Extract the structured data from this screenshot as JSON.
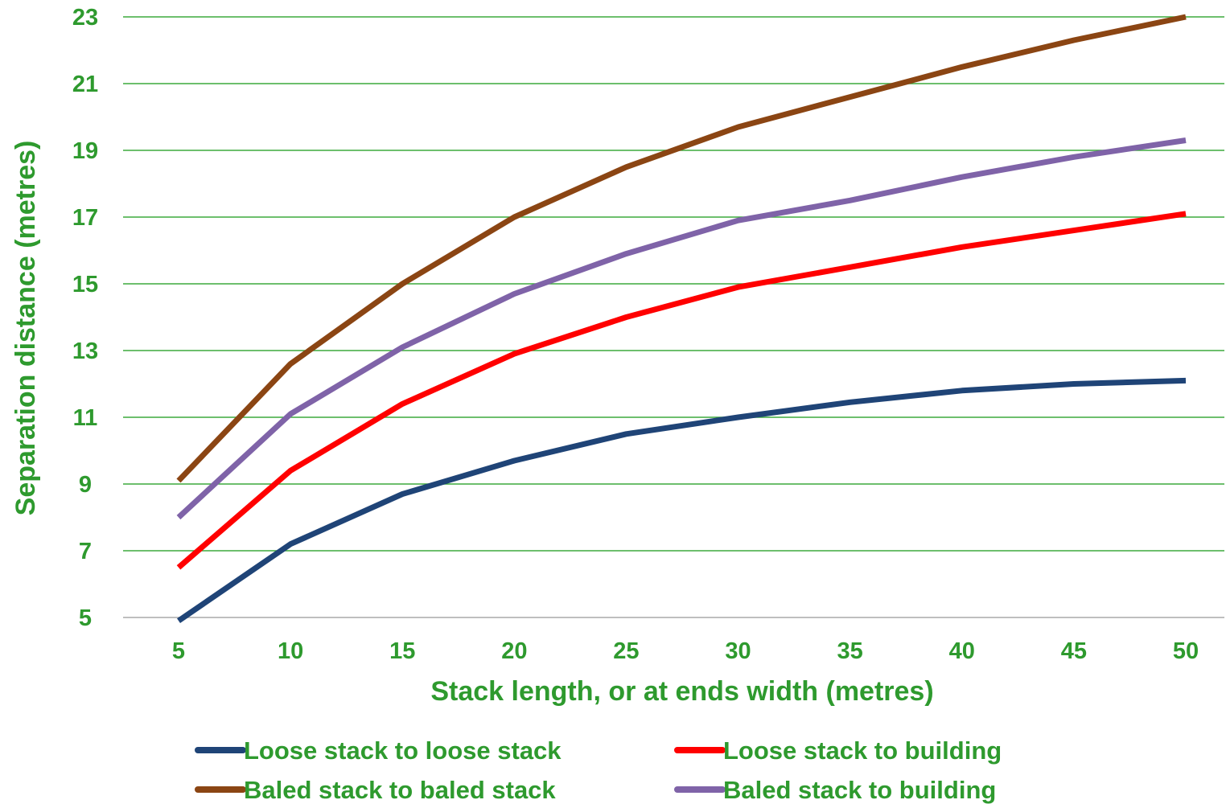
{
  "chart_data": {
    "type": "line",
    "title": "",
    "xlabel": "Stack length, or at ends width (metres)",
    "ylabel": "Separation distance (metres)",
    "x": [
      5,
      10,
      15,
      20,
      25,
      30,
      35,
      40,
      45,
      50
    ],
    "x_ticks": [
      "5",
      "10",
      "15",
      "20",
      "25",
      "30",
      "35",
      "40",
      "45",
      "50"
    ],
    "y_ticks": [
      "5",
      "7",
      "9",
      "11",
      "13",
      "15",
      "17",
      "19",
      "21",
      "23"
    ],
    "ylim": [
      5,
      23
    ],
    "grid": true,
    "legend_position": "bottom",
    "colors": {
      "axis_text": "#2e9a2e",
      "gridline": "#3daa3d",
      "baseline": "#bfbfbf"
    },
    "series": [
      {
        "name": "Loose stack to loose stack",
        "color": "#1f4477",
        "values": [
          4.9,
          7.2,
          8.7,
          9.7,
          10.5,
          11.0,
          11.45,
          11.8,
          12.0,
          12.1
        ]
      },
      {
        "name": "Loose stack to building",
        "color": "#ff0000",
        "values": [
          6.5,
          9.4,
          11.4,
          12.9,
          14.0,
          14.9,
          15.5,
          16.1,
          16.6,
          17.1
        ]
      },
      {
        "name": "Baled stack to baled stack",
        "color": "#8b4513",
        "values": [
          9.1,
          12.6,
          15.0,
          17.0,
          18.5,
          19.7,
          20.6,
          21.5,
          22.3,
          23.0
        ]
      },
      {
        "name": "Baled stack to building",
        "color": "#7f63a8",
        "values": [
          8.0,
          11.1,
          13.1,
          14.7,
          15.9,
          16.9,
          17.5,
          18.2,
          18.8,
          19.3
        ]
      }
    ]
  }
}
